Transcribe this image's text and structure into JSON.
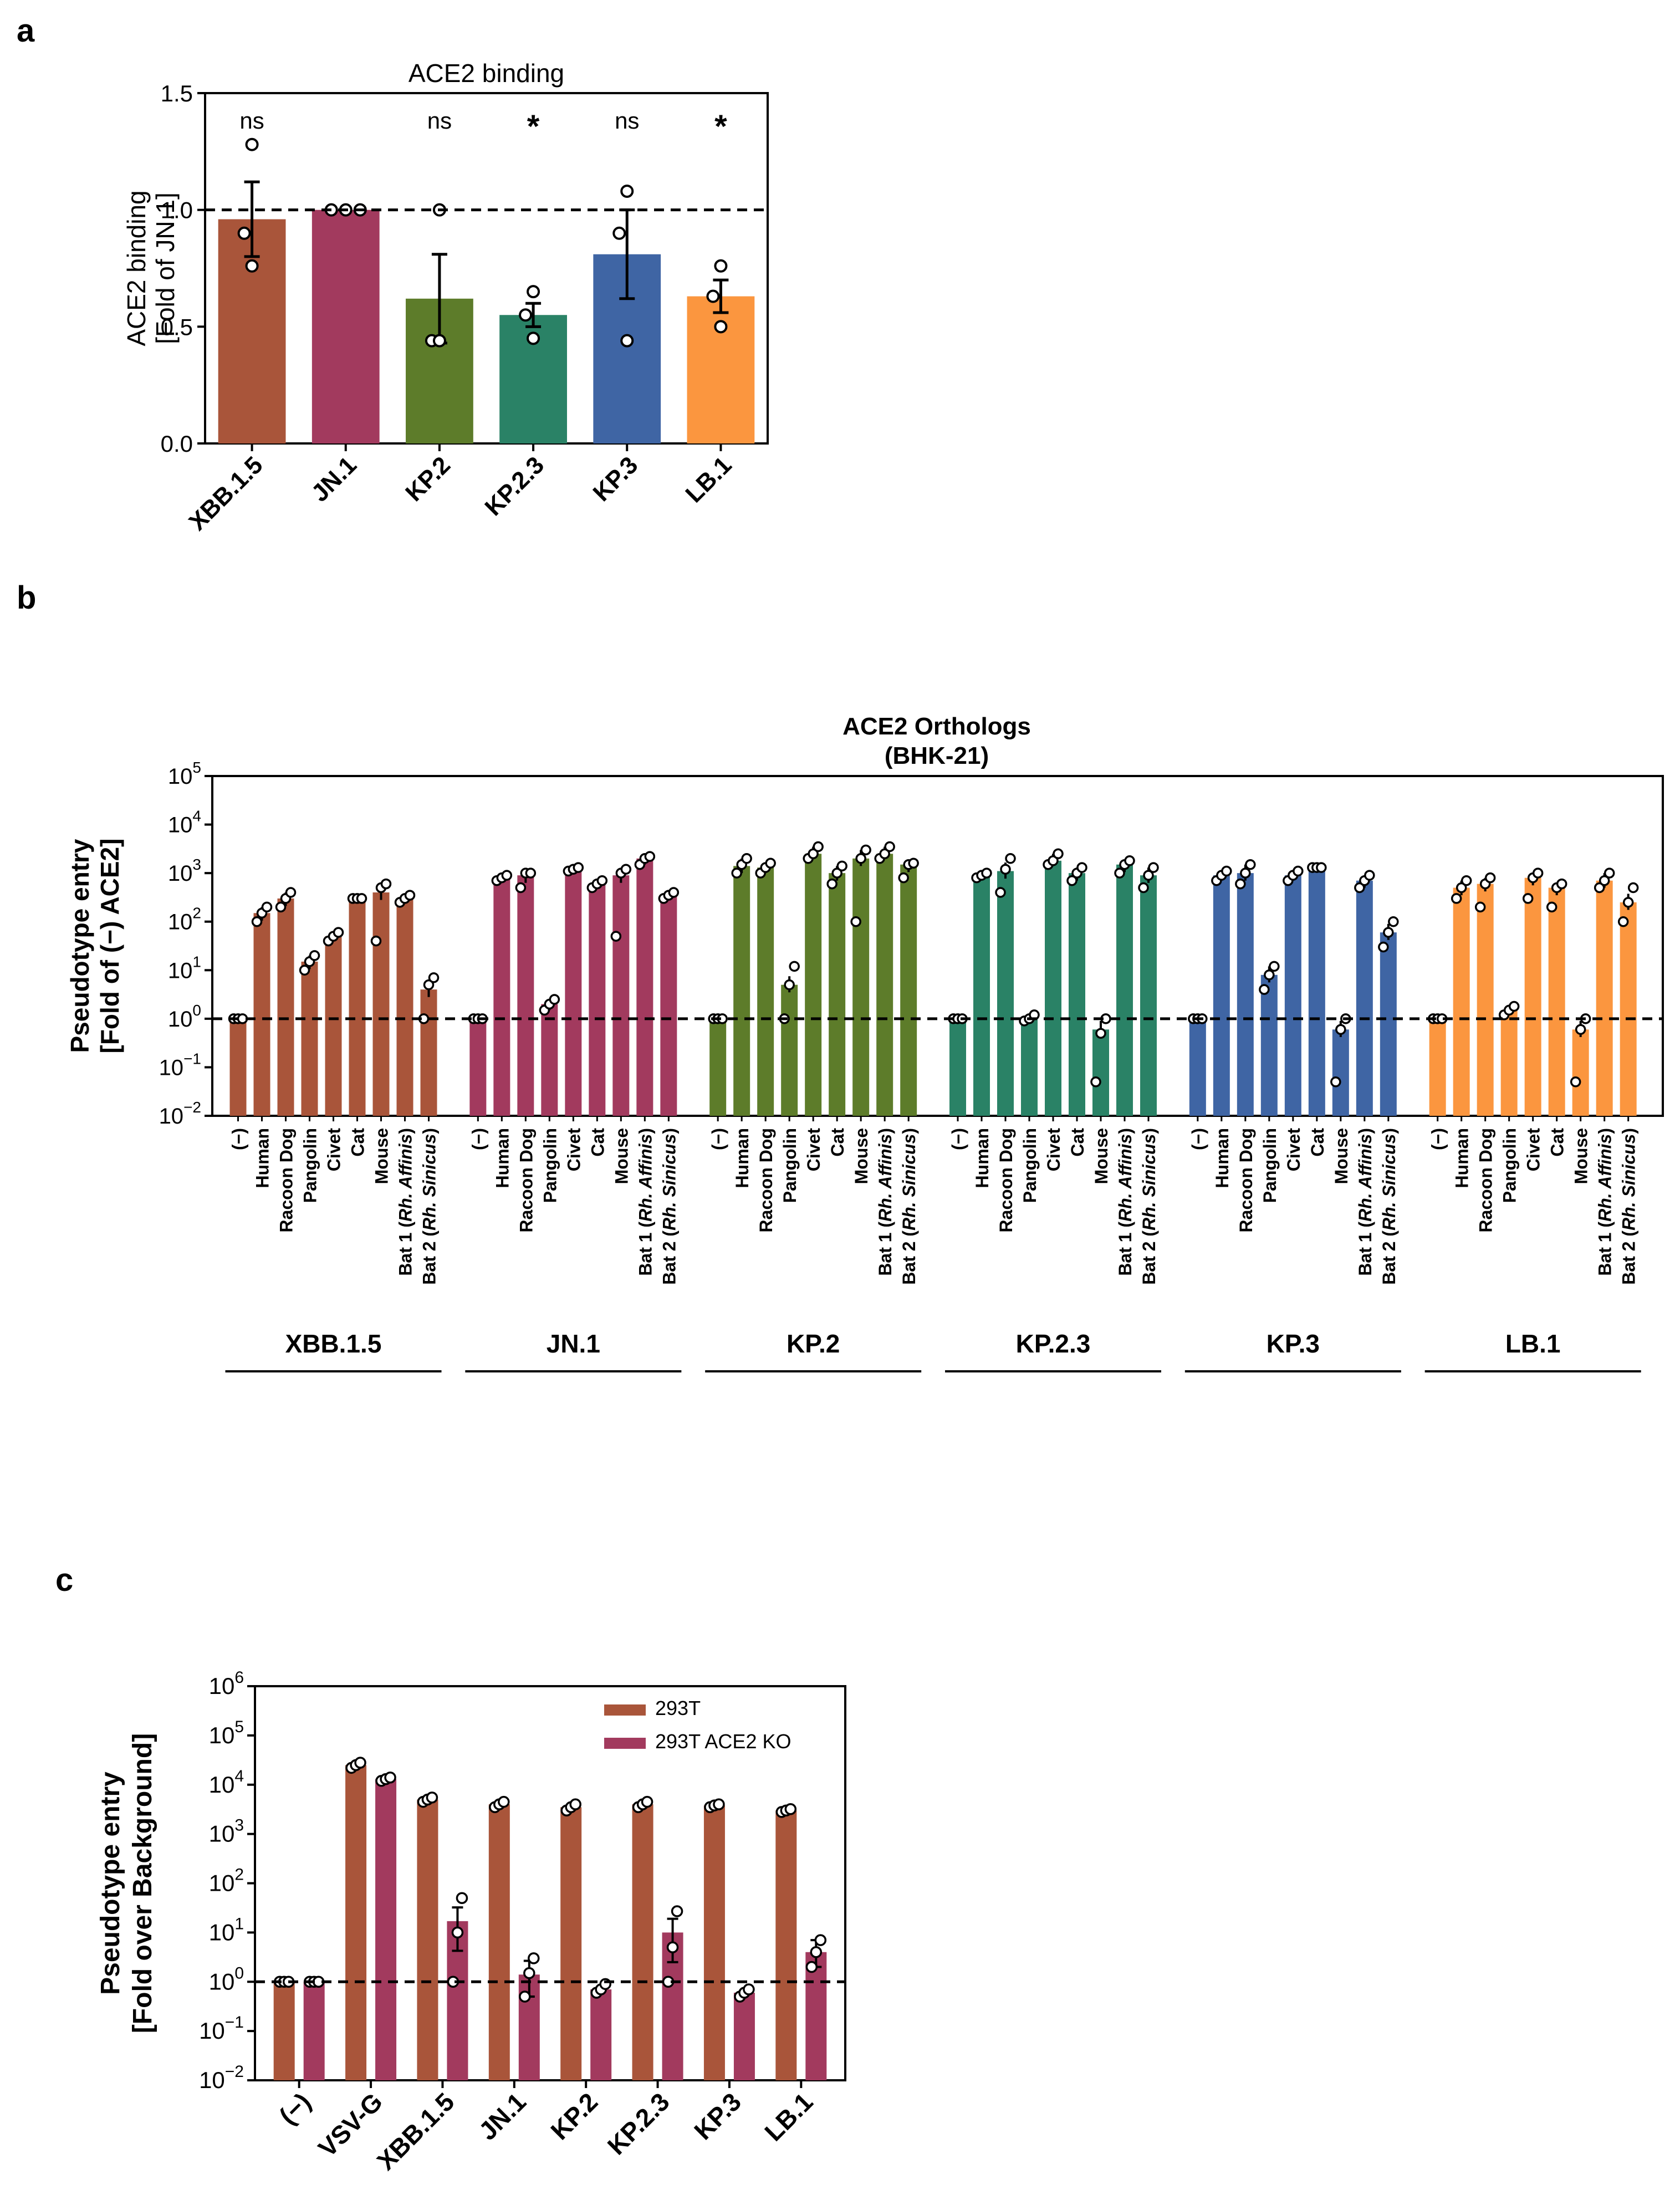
{
  "panels": {
    "a": "a",
    "b": "b",
    "c": "c"
  },
  "colors": {
    "XBB.1.5": "#a9553a",
    "JN.1": "#a23a5e",
    "KP.2": "#5d7c2a",
    "KP.2.3": "#2a8266",
    "KP.3": "#3f65a4",
    "LB.1": "#fb963f",
    "293T": "#a9553a",
    "293T ACE2 KO": "#a23a5e"
  },
  "chart_data": [
    {
      "id": "a",
      "type": "bar",
      "title": "ACE2 binding",
      "ylabel_lines": [
        "ACE2 binding",
        "[Fold of JN.1]"
      ],
      "xlabel": "",
      "ylim": [
        0,
        1.5
      ],
      "yticks": [
        "0.0",
        "0.5",
        "1.0",
        "1.5"
      ],
      "reference_line": 1.0,
      "categories": [
        "XBB.1.5",
        "JN.1",
        "KP.2",
        "KP.2.3",
        "KP.3",
        "LB.1"
      ],
      "values": [
        0.96,
        1.0,
        0.62,
        0.55,
        0.81,
        0.63
      ],
      "errors": [
        0.16,
        0.0,
        0.19,
        0.05,
        0.19,
        0.07
      ],
      "points": [
        [
          1.28,
          0.9,
          0.76
        ],
        [
          1.0,
          1.0,
          1.0
        ],
        [
          1.0,
          0.44,
          0.44
        ],
        [
          0.65,
          0.55,
          0.45
        ],
        [
          1.08,
          0.9,
          0.44
        ],
        [
          0.76,
          0.63,
          0.5
        ]
      ],
      "significance": [
        "ns",
        "",
        "ns",
        "*",
        "ns",
        "*"
      ]
    },
    {
      "id": "b",
      "type": "bar",
      "scale": "log",
      "title_lines": [
        "ACE2 Orthologs",
        "(BHK-21)"
      ],
      "ylabel_lines": [
        "Pseudotype entry",
        "[Fold of (−) ACE2]"
      ],
      "ytick_exponents": [
        -2,
        -1,
        0,
        1,
        2,
        3,
        4,
        5
      ],
      "ylim_log": [
        -2,
        5
      ],
      "reference_line": 1.0,
      "categories": [
        "(−)",
        "Human",
        "Racoon Dog",
        "Pangolin",
        "Civet",
        "Cat",
        "Mouse",
        "Bat 1 (Rh. Affinis)",
        "Bat 2 (Rh. Sinicus)"
      ],
      "group_labels": [
        "XBB.1.5",
        "JN.1",
        "KP.2",
        "KP.2.3",
        "KP.3",
        "LB.1"
      ],
      "series": [
        {
          "name": "XBB.1.5",
          "values": [
            1,
            150,
            300,
            15,
            50,
            300,
            400,
            300,
            4
          ],
          "points": [
            [
              1,
              1,
              1
            ],
            [
              100,
              150,
              200
            ],
            [
              200,
              300,
              400
            ],
            [
              10,
              15,
              20
            ],
            [
              40,
              50,
              60
            ],
            [
              300,
              300,
              300
            ],
            [
              40,
              500,
              600
            ],
            [
              250,
              300,
              350
            ],
            [
              1,
              5,
              7
            ]
          ]
        },
        {
          "name": "JN.1",
          "values": [
            1,
            800,
            900,
            2,
            1200,
            600,
            900,
            2000,
            350
          ],
          "points": [
            [
              1,
              1,
              1
            ],
            [
              700,
              800,
              900
            ],
            [
              500,
              1000,
              1000
            ],
            [
              1.5,
              2,
              2.5
            ],
            [
              1100,
              1200,
              1300
            ],
            [
              500,
              600,
              700
            ],
            [
              50,
              1000,
              1200
            ],
            [
              1500,
              2000,
              2200
            ],
            [
              300,
              350,
              400
            ]
          ]
        },
        {
          "name": "KP.2",
          "values": [
            1,
            1400,
            1300,
            5,
            2500,
            1000,
            2000,
            2500,
            1500
          ],
          "points": [
            [
              1,
              1,
              1
            ],
            [
              1000,
              1500,
              2000
            ],
            [
              1000,
              1300,
              1600
            ],
            [
              1,
              5,
              12
            ],
            [
              2000,
              2500,
              3500
            ],
            [
              600,
              1000,
              1400
            ],
            [
              100,
              2000,
              3000
            ],
            [
              2000,
              2500,
              3500
            ],
            [
              800,
              1500,
              1600
            ]
          ]
        },
        {
          "name": "KP.2.3",
          "values": [
            1,
            900,
            1100,
            1,
            1800,
            1000,
            0.6,
            1500,
            900
          ],
          "points": [
            [
              1,
              1,
              1
            ],
            [
              800,
              900,
              1000
            ],
            [
              400,
              1200,
              2000
            ],
            [
              0.9,
              1,
              1.2
            ],
            [
              1500,
              1800,
              2500
            ],
            [
              700,
              1000,
              1300
            ],
            [
              0.05,
              0.5,
              1
            ],
            [
              1000,
              1500,
              1800
            ],
            [
              500,
              900,
              1300
            ]
          ]
        },
        {
          "name": "KP.3",
          "values": [
            1,
            900,
            1000,
            8,
            900,
            1300,
            0.6,
            700,
            60
          ],
          "points": [
            [
              1,
              1,
              1
            ],
            [
              700,
              900,
              1100
            ],
            [
              600,
              1000,
              1500
            ],
            [
              4,
              8,
              12
            ],
            [
              700,
              900,
              1100
            ],
            [
              1300,
              1300,
              1300
            ],
            [
              0.05,
              0.6,
              1
            ],
            [
              500,
              700,
              900
            ],
            [
              30,
              60,
              100
            ]
          ]
        },
        {
          "name": "LB.1",
          "values": [
            1,
            500,
            600,
            1.5,
            800,
            500,
            0.6,
            700,
            250
          ],
          "points": [
            [
              1,
              1,
              1
            ],
            [
              300,
              500,
              700
            ],
            [
              200,
              600,
              800
            ],
            [
              1.2,
              1.5,
              1.8
            ],
            [
              300,
              800,
              1000
            ],
            [
              200,
              500,
              600
            ],
            [
              0.05,
              0.6,
              1
            ],
            [
              500,
              700,
              1000
            ],
            [
              100,
              250,
              500
            ]
          ]
        }
      ]
    },
    {
      "id": "c",
      "type": "bar",
      "scale": "log",
      "ylabel_lines": [
        "Pseudotype entry",
        "[Fold over Background]"
      ],
      "ytick_exponents": [
        -2,
        -1,
        0,
        1,
        2,
        3,
        4,
        5,
        6
      ],
      "ylim_log": [
        -2,
        6
      ],
      "reference_line": 1.0,
      "categories": [
        "(−)",
        "VSV-G",
        "XBB.1.5",
        "JN.1",
        "KP.2",
        "KP.2.3",
        "KP.3",
        "LB.1"
      ],
      "legend": [
        "293T",
        "293T ACE2 KO"
      ],
      "legend_position": "top-right",
      "series": [
        {
          "name": "293T",
          "values": [
            1,
            25000,
            5000,
            4000,
            3500,
            4000,
            3800,
            3000
          ],
          "points": [
            [
              1,
              1,
              1
            ],
            [
              22000,
              25000,
              28000
            ],
            [
              4500,
              5000,
              5500
            ],
            [
              3500,
              4000,
              4500
            ],
            [
              3000,
              3500,
              4000
            ],
            [
              3500,
              4000,
              4500
            ],
            [
              3500,
              3800,
              4000
            ],
            [
              2800,
              3000,
              3200
            ]
          ]
        },
        {
          "name": "293T ACE2 KO",
          "values": [
            1,
            13000,
            17,
            1.4,
            0.7,
            10,
            0.6,
            4
          ],
          "points": [
            [
              1,
              1,
              1
            ],
            [
              12000,
              13000,
              14000
            ],
            [
              1,
              10,
              50
            ],
            [
              0.5,
              1.5,
              3
            ],
            [
              0.6,
              0.7,
              0.9
            ],
            [
              1,
              5,
              27
            ],
            [
              0.5,
              0.6,
              0.7
            ],
            [
              2,
              4,
              7
            ]
          ]
        }
      ]
    }
  ]
}
